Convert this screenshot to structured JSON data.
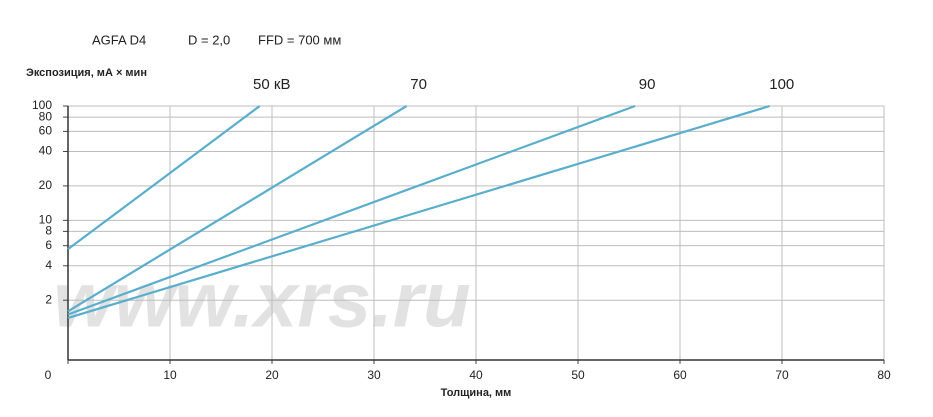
{
  "chart_data": {
    "type": "line",
    "header": [
      "AGFA D4",
      "D = 2,0",
      "FFD = 700 мм"
    ],
    "y_label": "Экспозиция, мА × мин",
    "x_label": "Толщина, мм",
    "watermark": "www.xrs.ru",
    "log_y": true,
    "grid": true,
    "xlim": [
      0,
      80
    ],
    "xticks": [
      0,
      10,
      20,
      30,
      40,
      50,
      60,
      70,
      80
    ],
    "ylim": [
      0.6,
      100
    ],
    "yticks": [
      2,
      4,
      6,
      8,
      10,
      20,
      40,
      60,
      80,
      100
    ],
    "series": [
      {
        "name": "50 кВ",
        "color": "#5aaecd",
        "x": [
          0,
          18.8
        ],
        "values": [
          5.6,
          100
        ]
      },
      {
        "name": "70",
        "color": "#5aaecd",
        "x": [
          0,
          33.2
        ],
        "values": [
          1.6,
          100
        ]
      },
      {
        "name": "90",
        "color": "#5aaecd",
        "x": [
          0,
          55.6
        ],
        "values": [
          1.5,
          100
        ]
      },
      {
        "name": "100",
        "color": "#5aaecd",
        "x": [
          0,
          68.8
        ],
        "values": [
          1.4,
          100
        ]
      }
    ]
  }
}
